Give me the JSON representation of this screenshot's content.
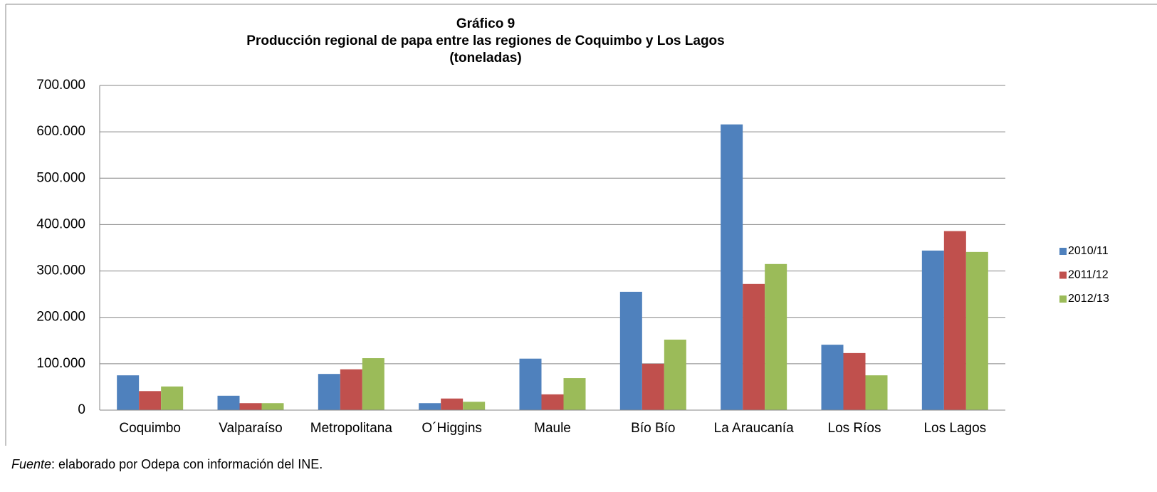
{
  "chart_data": {
    "type": "bar",
    "title_lines": [
      "Gráfico 9",
      "Producción regional de papa entre las regiones de Coquimbo y Los Lagos",
      "(toneladas)"
    ],
    "categories": [
      "Coquimbo",
      "Valparaíso",
      "Metropolitana",
      "O´Higgins",
      "Maule",
      "Bío Bío",
      "La Araucanía",
      "Los Ríos",
      "Los Lagos"
    ],
    "series": [
      {
        "name": "2010/11",
        "color": "#4f81bd",
        "values": [
          75000,
          31000,
          78000,
          15000,
          111000,
          255000,
          616000,
          141000,
          344000
        ]
      },
      {
        "name": "2011/12",
        "color": "#c0504d",
        "values": [
          41000,
          15000,
          88000,
          25000,
          34000,
          100000,
          272000,
          123000,
          386000
        ]
      },
      {
        "name": "2012/13",
        "color": "#9bbb59",
        "values": [
          51000,
          15000,
          112000,
          18000,
          69000,
          152000,
          315000,
          75000,
          341000
        ]
      }
    ],
    "ylim": [
      0,
      700000
    ],
    "yticks": [
      0,
      {
        "value": 100000,
        "label": "100.000"
      },
      {
        "value": 200000,
        "label": "200.000"
      },
      {
        "value": 300000,
        "label": "300.000"
      },
      {
        "value": 400000,
        "label": "400.000"
      },
      {
        "value": 500000,
        "label": "500.000"
      },
      {
        "value": 600000,
        "label": "600.000"
      },
      {
        "value": 700000,
        "label": "700.000"
      }
    ],
    "grid": true,
    "legend": "right"
  },
  "footer": {
    "source_label": "Fuente",
    "text": ": elaborado por Odepa con información del INE."
  }
}
